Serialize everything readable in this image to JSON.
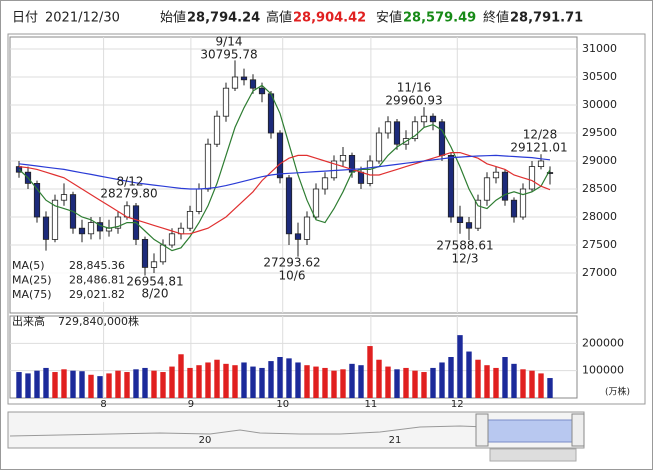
{
  "header": {
    "date_label": "日付",
    "date": "2021/12/30",
    "open_label": "始値",
    "open": "28,794.24",
    "high_label": "高値",
    "high": "28,904.42",
    "low_label": "安値",
    "low": "28,579.49",
    "close_label": "終値",
    "close": "28,791.71"
  },
  "chart_data": [
    {
      "type": "candlestick",
      "up_color": "#ffffff",
      "down_color": "#1c2a7a",
      "edge_color": "#222222",
      "open": [
        28900,
        28800,
        28600,
        28000,
        27600,
        28300,
        28400,
        27800,
        27700,
        27900,
        27750,
        27800,
        28000,
        28200,
        27600,
        27100,
        27200,
        27500,
        27700,
        27800,
        28100,
        28500,
        29300,
        29800,
        30300,
        30500,
        30450,
        30300,
        30200,
        29500,
        28700,
        27700,
        27600,
        28000,
        28500,
        28700,
        29000,
        29100,
        28800,
        28600,
        29000,
        29500,
        29700,
        29300,
        29400,
        29700,
        29800,
        29700,
        29100,
        28000,
        27900,
        27800,
        28300,
        28700,
        28800,
        28300,
        28000,
        28500,
        28900,
        28794.24
      ],
      "high": [
        29000,
        28900,
        28650,
        28100,
        28400,
        28600,
        28450,
        27950,
        28000,
        28000,
        27950,
        28100,
        28279.8,
        28250,
        27650,
        27350,
        27600,
        27800,
        27900,
        28200,
        28600,
        29400,
        29900,
        30400,
        30795.78,
        30650,
        30550,
        30400,
        30250,
        29550,
        28750,
        27900,
        28100,
        28600,
        28800,
        29100,
        29250,
        29150,
        28900,
        29100,
        29600,
        29800,
        29750,
        29550,
        29800,
        29960.93,
        29850,
        29750,
        29150,
        28200,
        28000,
        28400,
        28800,
        28900,
        28850,
        28350,
        28600,
        29000,
        29121.01,
        28904.42
      ],
      "low": [
        28700,
        28500,
        27900,
        27400,
        27550,
        28200,
        27700,
        27550,
        27600,
        27600,
        27650,
        27700,
        27950,
        27500,
        26954.81,
        27000,
        27150,
        27450,
        27600,
        27750,
        28050,
        28450,
        29250,
        29700,
        30250,
        30350,
        30200,
        30050,
        29400,
        28600,
        27500,
        27293.62,
        27500,
        27950,
        28400,
        28650,
        28900,
        28700,
        28500,
        28550,
        28950,
        29400,
        29200,
        29200,
        29350,
        29600,
        29550,
        29000,
        27900,
        27700,
        27588.61,
        27750,
        28200,
        28600,
        28200,
        27900,
        27950,
        28450,
        28850,
        28579.49
      ],
      "close": [
        28800,
        28600,
        28000,
        27600,
        28300,
        28400,
        27800,
        27700,
        27900,
        27750,
        27800,
        28000,
        28200,
        27600,
        27100,
        27200,
        27500,
        27700,
        27800,
        28100,
        28500,
        29300,
        29800,
        30300,
        30500,
        30450,
        30300,
        30200,
        29500,
        28700,
        27700,
        27600,
        28000,
        28500,
        28700,
        29000,
        29100,
        28800,
        28600,
        29000,
        29500,
        29700,
        29300,
        29400,
        29700,
        29800,
        29700,
        29100,
        28000,
        27900,
        27800,
        28300,
        28700,
        28800,
        28300,
        28000,
        28500,
        28900,
        29000,
        28791.71
      ],
      "ylim": [
        26286,
        31214
      ],
      "yticks": [
        27000,
        27500,
        28000,
        28500,
        29000,
        29500,
        30000,
        30500,
        31000
      ],
      "xlim": [
        -1,
        62
      ],
      "grid": true,
      "ma": [
        {
          "name": "MA(5)",
          "color": "#2e7d32",
          "legend_value": "28,845.36",
          "values": [
            28850,
            28700,
            28500,
            28300,
            28200,
            28150,
            28100,
            28000,
            27950,
            27850,
            27800,
            27830,
            27900,
            27900,
            27750,
            27600,
            27500,
            27400,
            27450,
            27650,
            27900,
            28200,
            28600,
            29100,
            29600,
            29950,
            30250,
            30350,
            30200,
            29850,
            29300,
            28750,
            28300,
            27950,
            27900,
            28150,
            28450,
            28800,
            28850,
            28850,
            28900,
            29100,
            29250,
            29350,
            29450,
            29600,
            29650,
            29550,
            29250,
            28900,
            28500,
            28200,
            28150,
            28300,
            28400,
            28450,
            28400,
            28450,
            28550,
            28845.36
          ]
        },
        {
          "name": "MA(25)",
          "color": "#e03030",
          "legend_value": "28,486.81",
          "values": [
            28900,
            28880,
            28850,
            28800,
            28750,
            28700,
            28600,
            28500,
            28400,
            28300,
            28200,
            28100,
            28000,
            27950,
            27900,
            27850,
            27800,
            27750,
            27700,
            27700,
            27750,
            27800,
            27900,
            28000,
            28150,
            28300,
            28450,
            28650,
            28800,
            28950,
            29050,
            29100,
            29100,
            29050,
            29000,
            28950,
            28900,
            28850,
            28800,
            28750,
            28750,
            28800,
            28850,
            28900,
            28950,
            29000,
            29050,
            29100,
            29150,
            29150,
            29100,
            29050,
            28950,
            28900,
            28850,
            28750,
            28700,
            28650,
            28550,
            28486.81
          ]
        },
        {
          "name": "MA(75)",
          "color": "#2a3bd6",
          "legend_value": "29,021.82",
          "values": [
            28950,
            28930,
            28910,
            28890,
            28870,
            28850,
            28820,
            28790,
            28760,
            28730,
            28700,
            28670,
            28640,
            28610,
            28590,
            28570,
            28550,
            28530,
            28510,
            28500,
            28500,
            28510,
            28530,
            28560,
            28600,
            28640,
            28680,
            28720,
            28750,
            28770,
            28780,
            28790,
            28800,
            28810,
            28820,
            28830,
            28840,
            28850,
            28860,
            28880,
            28900,
            28920,
            28940,
            28960,
            28980,
            29000,
            29020,
            29040,
            29060,
            29070,
            29080,
            29090,
            29095,
            29100,
            29090,
            29080,
            29070,
            29060,
            29040,
            29021.82
          ]
        }
      ],
      "annotations": [
        {
          "date": "9/14",
          "price": "30795.78"
        },
        {
          "date": "8/12",
          "price": "28279.80"
        },
        {
          "date": "8/20",
          "price": "26954.81"
        },
        {
          "date": "10/6",
          "price": "27293.62"
        },
        {
          "date": "11/16",
          "price": "29960.93"
        },
        {
          "date": "12/3",
          "price": "27588.61"
        },
        {
          "date": "12/28",
          "price": "29121.01"
        }
      ]
    },
    {
      "type": "bar",
      "title": "出来高",
      "total_label": "729,840,000株",
      "unit": "(万株)",
      "up_color": "#e02020",
      "down_color": "#1c2a9a",
      "values": [
        95000,
        90000,
        100000,
        110000,
        95000,
        105000,
        100000,
        98000,
        85000,
        80000,
        90000,
        100000,
        95000,
        105000,
        110000,
        100000,
        95000,
        115000,
        160000,
        110000,
        120000,
        130000,
        140000,
        125000,
        120000,
        130000,
        115000,
        110000,
        135000,
        150000,
        145000,
        130000,
        120000,
        115000,
        110000,
        100000,
        105000,
        125000,
        120000,
        190000,
        140000,
        115000,
        105000,
        110000,
        100000,
        95000,
        110000,
        130000,
        150000,
        230000,
        170000,
        140000,
        120000,
        110000,
        150000,
        125000,
        105000,
        100000,
        90000,
        72984
      ],
      "ylim": [
        0,
        300000
      ],
      "yticks": [
        100000,
        200000
      ],
      "xlim": [
        -1,
        62
      ],
      "xticks": [
        {
          "value": 9.4,
          "label": "8"
        },
        {
          "value": 19.1,
          "label": "9"
        },
        {
          "value": 29.3,
          "label": "10"
        },
        {
          "value": 39.1,
          "label": "11"
        },
        {
          "value": 48.7,
          "label": "12"
        }
      ]
    }
  ],
  "navigator": {
    "labels": [
      "20",
      "21"
    ]
  }
}
